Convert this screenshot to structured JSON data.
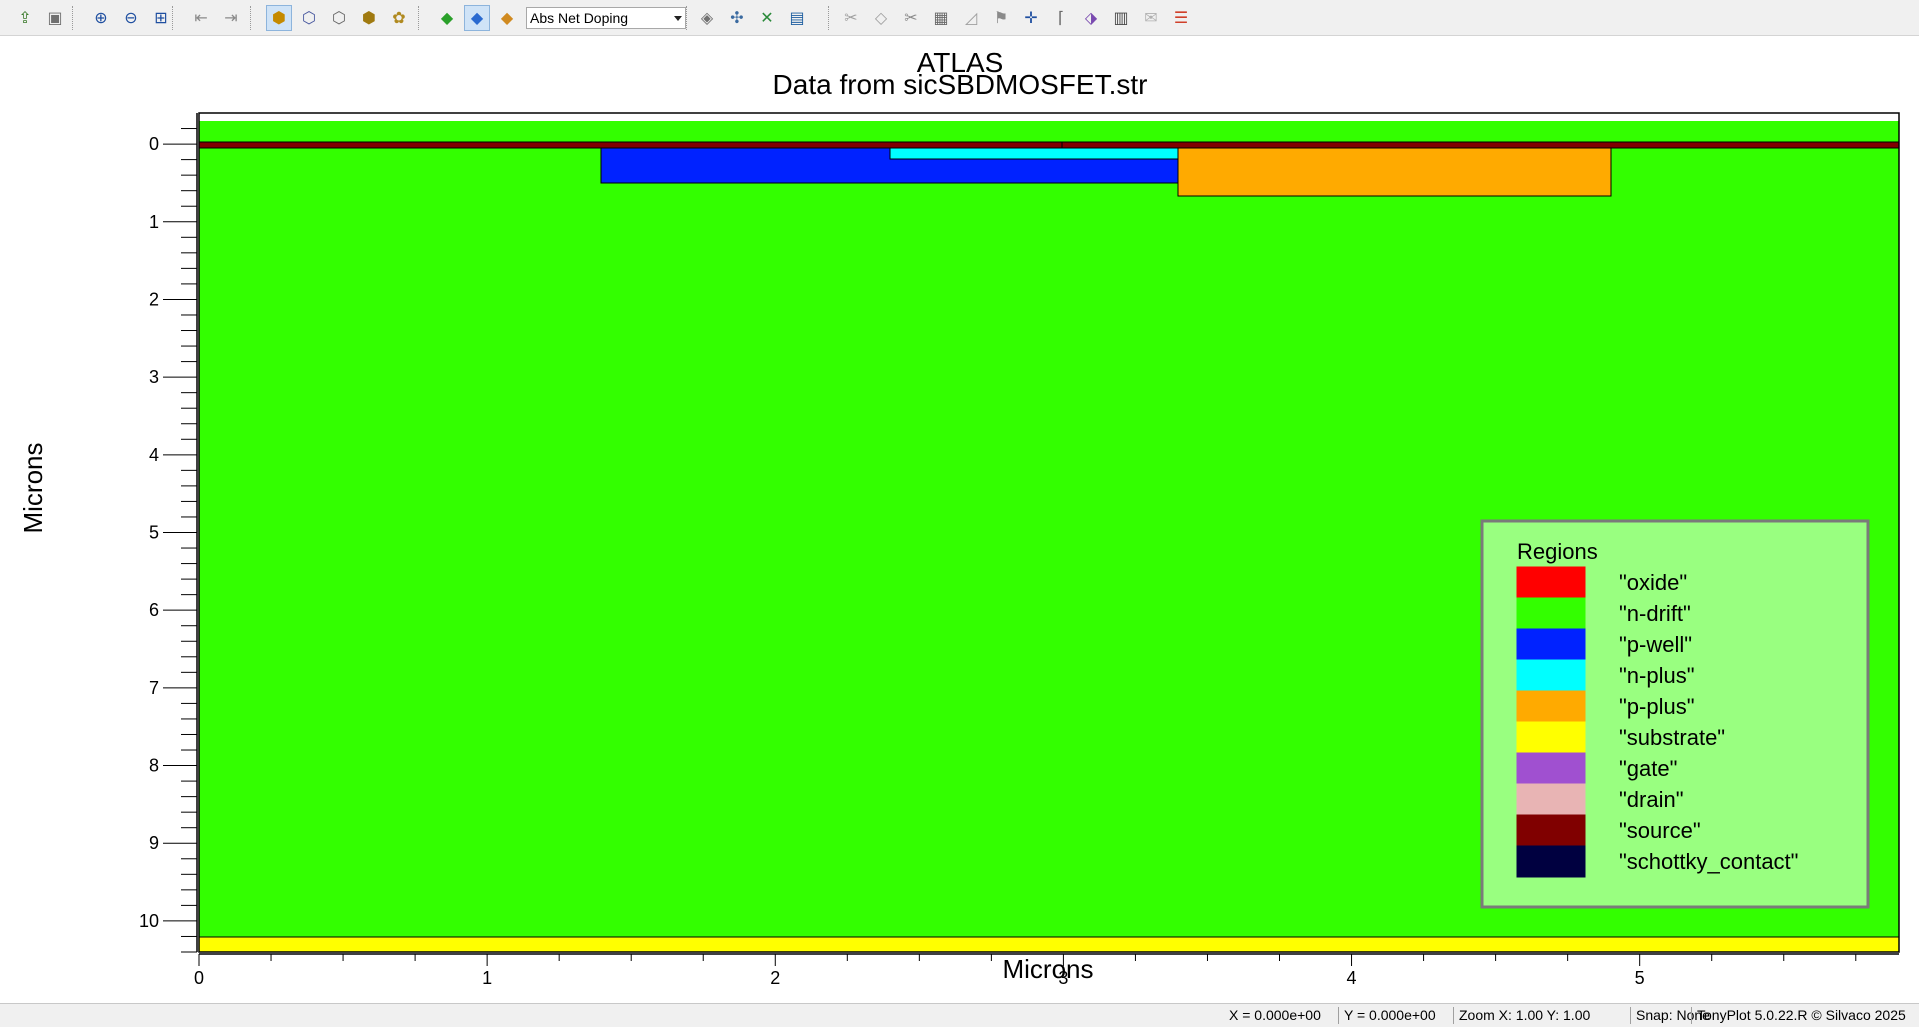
{
  "toolbar": {
    "buttons_group1": [
      {
        "name": "open-icon",
        "glyph": "⇪",
        "color": "#3a7a2a"
      },
      {
        "name": "save-icon",
        "glyph": "▣",
        "color": "#707070"
      }
    ],
    "buttons_group2": [
      {
        "name": "zoom-in-icon",
        "glyph": "⊕",
        "color": "#1f4fa0"
      },
      {
        "name": "zoom-out-icon",
        "glyph": "⊖",
        "color": "#1f4fa0"
      },
      {
        "name": "zoom-fit-icon",
        "glyph": "⊞",
        "color": "#1f4fa0"
      }
    ],
    "buttons_group3": [
      {
        "name": "back-icon",
        "glyph": "⇤",
        "color": "#8a8a8a"
      },
      {
        "name": "forward-icon",
        "glyph": "⇥",
        "color": "#8a8a8a"
      }
    ],
    "buttons_group4": [
      {
        "name": "mesh-filled-icon",
        "glyph": "⬢",
        "color": "#c58a00",
        "active": true
      },
      {
        "name": "mesh-grid-icon",
        "glyph": "⬡",
        "color": "#4a5aa0"
      },
      {
        "name": "mesh-outline-icon",
        "glyph": "⬡",
        "color": "#6a6a6a"
      },
      {
        "name": "mesh-solid-icon",
        "glyph": "⬢",
        "color": "#a07a10"
      },
      {
        "name": "boundary-icon",
        "glyph": "✿",
        "color": "#b08a20"
      }
    ],
    "buttons_group5": [
      {
        "name": "region-color-icon",
        "glyph": "◆",
        "color": "#2aa02a"
      },
      {
        "name": "contour-icon",
        "glyph": "◆",
        "color": "#2a6ad0",
        "active": true
      },
      {
        "name": "material-icon",
        "glyph": "◆",
        "color": "#d08a20"
      }
    ],
    "quantity_select": "Abs Net Doping",
    "buttons_group6": [
      {
        "name": "probe-icon",
        "glyph": "◈",
        "color": "#707070"
      },
      {
        "name": "tools-icon",
        "glyph": "✣",
        "color": "#3a6aa0"
      },
      {
        "name": "cutline-icon",
        "glyph": "✕",
        "color": "#2a8a3a"
      },
      {
        "name": "display-icon",
        "glyph": "▤",
        "color": "#1f5fa0"
      }
    ],
    "buttons_group7": [
      {
        "name": "scissors-disabled-icon",
        "glyph": "✂",
        "color": "#a0a0a0"
      },
      {
        "name": "box-disabled-icon",
        "glyph": "◇",
        "color": "#a0a0a0"
      },
      {
        "name": "cut-icon",
        "glyph": "✂",
        "color": "#8a8a8a"
      },
      {
        "name": "film-icon",
        "glyph": "▦",
        "color": "#6a6a6a"
      },
      {
        "name": "ruler-icon",
        "glyph": "◿",
        "color": "#a0a0a0"
      },
      {
        "name": "flag-icon",
        "glyph": "⚑",
        "color": "#8a8a8a"
      },
      {
        "name": "axes-icon",
        "glyph": "✛",
        "color": "#1f4fa0"
      },
      {
        "name": "label-icon",
        "glyph": "⌈",
        "color": "#6a6a6a"
      },
      {
        "name": "tag-icon",
        "glyph": "⬗",
        "color": "#7a4ab0"
      },
      {
        "name": "movie-icon",
        "glyph": "▥",
        "color": "#4a4a4a"
      },
      {
        "name": "envelope-disabled-icon",
        "glyph": "✉",
        "color": "#b0b0b0"
      },
      {
        "name": "list-icon",
        "glyph": "☰",
        "color": "#d0402a"
      }
    ]
  },
  "plot": {
    "title": "ATLAS",
    "subtitle": "Data from sicSBDMOSFET.str",
    "xlabel": "Microns",
    "ylabel": "Microns",
    "x_ticks": [
      "0",
      "1",
      "2",
      "3",
      "4",
      "5"
    ],
    "y_ticks": [
      "0",
      "1",
      "2",
      "3",
      "4",
      "5",
      "6",
      "7",
      "8",
      "9",
      "10"
    ],
    "xlim": [
      0,
      5.9
    ],
    "ylim": [
      -0.4,
      10.4
    ]
  },
  "legend": {
    "title": "Regions",
    "items": [
      {
        "label": "\"oxide\"",
        "color": "#ff0000"
      },
      {
        "label": "\"n-drift\"",
        "color": "#33ff00"
      },
      {
        "label": "\"p-well\"",
        "color": "#0022ff"
      },
      {
        "label": "\"n-plus\"",
        "color": "#00ffff"
      },
      {
        "label": "\"p-plus\"",
        "color": "#ffaa00"
      },
      {
        "label": "\"substrate\"",
        "color": "#ffff00"
      },
      {
        "label": "\"gate\"",
        "color": "#a050d0"
      },
      {
        "label": "\"drain\"",
        "color": "#e8b4b4"
      },
      {
        "label": "\"source\"",
        "color": "#800000"
      },
      {
        "label": "\"schottky_contact\"",
        "color": "#000040"
      }
    ]
  },
  "status": {
    "x_readout": "X = 0.000e+00",
    "y_readout": "Y = 0.000e+00",
    "zoom": "Zoom X: 1.00 Y: 1.00",
    "snap": "Snap: None",
    "version": "TonyPlot 5.0.22.R © Silvaco 2025"
  },
  "colors": {
    "legend_bg": "#99ff80",
    "ndrift": "#33ff00",
    "pwell": "#0022ff",
    "nplus": "#00ffff",
    "pplus": "#ffaa00",
    "substrate": "#ffff00",
    "source": "#800000"
  }
}
